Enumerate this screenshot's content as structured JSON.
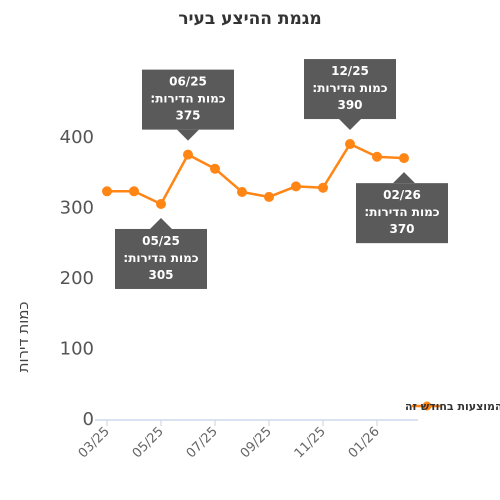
{
  "chart_data": {
    "type": "line",
    "title": "מגמת ההיצע בעיר",
    "ylabel": "כמות דירות",
    "xlabel": "",
    "ylim": [
      0,
      400
    ],
    "yticks": [
      0,
      100,
      200,
      300,
      400
    ],
    "xtick_labels": [
      "03/25",
      "05/25",
      "07/25",
      "09/25",
      "11/25",
      "01/26"
    ],
    "x": [
      "03/25",
      "04/25",
      "05/25",
      "06/25",
      "07/25",
      "08/25",
      "09/25",
      "10/25",
      "11/25",
      "12/25",
      "01/26",
      "02/26"
    ],
    "series": [
      {
        "name": "כמות הדירות המוצעות בחודש זה",
        "color": "#ff8515",
        "values": [
          323,
          323,
          305,
          375,
          355,
          322,
          315,
          330,
          328,
          390,
          372,
          370
        ]
      }
    ],
    "legend": "right",
    "grid": false,
    "annotations": [
      {
        "x": "06/25",
        "date": "06/25",
        "label": "כמות הדירות:",
        "value": "375",
        "placement": "above"
      },
      {
        "x": "12/25",
        "date": "12/25",
        "label": "כמות הדירות:",
        "value": "390",
        "placement": "above"
      },
      {
        "x": "05/25",
        "date": "05/25",
        "label": "כמות הדירות:",
        "value": "305",
        "placement": "below"
      },
      {
        "x": "02/26",
        "date": "02/26",
        "label": "כמות הדירות:",
        "value": "370",
        "placement": "below"
      }
    ]
  }
}
